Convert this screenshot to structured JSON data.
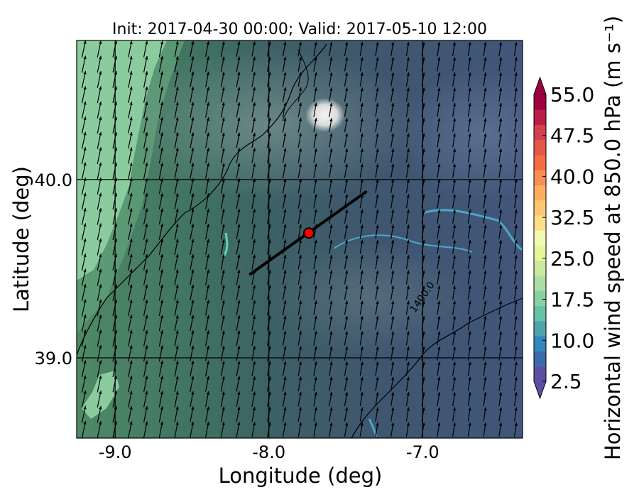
{
  "chart_data": {
    "type": "heatmap",
    "title": "Init: 2017-04-30 00:00; Valid: 2017-05-10 12:00",
    "xlabel": "Longitude (deg)",
    "ylabel": "Latitude (deg)",
    "xlim": [
      -9.25,
      -6.35
    ],
    "ylim": [
      38.55,
      40.78
    ],
    "xticks": [
      -9.0,
      -8.0,
      -7.0
    ],
    "xtick_labels": [
      "-9.0",
      "-8.0",
      "-7.0"
    ],
    "yticks": [
      39.0,
      40.0
    ],
    "ytick_labels": [
      "39.0",
      "40.0"
    ],
    "grid": true,
    "colorbar": {
      "label": "Horizontal wind speed at 850.0 hPa (m s⁻¹)",
      "min": 2.5,
      "max": 55.0,
      "step": 2.5,
      "extend": "both",
      "tick_values": [
        2.5,
        10.0,
        17.5,
        25.0,
        32.5,
        40.0,
        47.5,
        55.0
      ],
      "tick_labels": [
        "2.5",
        "10.0",
        "17.5",
        "25.0",
        "32.5",
        "40.0",
        "47.5",
        "55.0"
      ],
      "colors": [
        "#5e4fa2",
        "#3d6aae",
        "#3288bd",
        "#4ea5b0",
        "#66c2a5",
        "#89d0a4",
        "#abdda4",
        "#c9e99e",
        "#e6f598",
        "#f3fab0",
        "#fee08b",
        "#fdc574",
        "#fdae61",
        "#f98e52",
        "#f46d43",
        "#e55749",
        "#d53e4f",
        "#b91e48",
        "#9e0142"
      ]
    },
    "wind_field": {
      "direction": "south-southwesterly",
      "speed_range": [
        8.0,
        17.5
      ],
      "west_edge_speed": 15.0,
      "interior_speed": 10.0
    },
    "contour_labels": [
      {
        "text": "1400.0",
        "lon": -7.05,
        "lat": 39.25
      }
    ],
    "cross_section_line": {
      "start": [
        -8.12,
        39.47
      ],
      "end": [
        -7.37,
        39.93
      ],
      "color": "#000000"
    },
    "location_marker": {
      "lon": -7.74,
      "lat": 39.7,
      "color": "#ff0000"
    }
  }
}
